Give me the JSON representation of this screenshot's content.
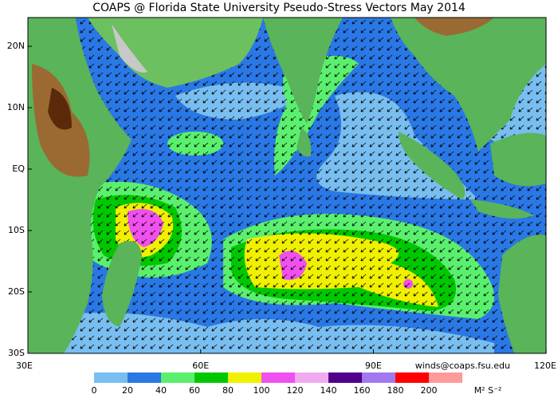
{
  "title": "COAPS @ Florida State University Pseudo-Stress Vectors May 2014",
  "map": {
    "lat_labels": [
      "20N",
      "10N",
      "EQ",
      "10S",
      "20S",
      "30S"
    ],
    "lon_labels": [
      "30E",
      "60E",
      "90E",
      "120E"
    ]
  },
  "colorbar": {
    "labels": [
      0,
      20,
      40,
      60,
      80,
      100,
      120,
      140,
      160,
      180,
      200
    ],
    "colors": [
      "#78bef0",
      "#2a78e6",
      "#5af06e",
      "#00c800",
      "#f0f000",
      "#f050f0",
      "#f0aaf0",
      "#50008c",
      "#a078f0",
      "#ff0000",
      "#ff9a9a"
    ],
    "units": "M² S⁻²"
  },
  "credit": "winds@coaps.fsu.edu"
}
